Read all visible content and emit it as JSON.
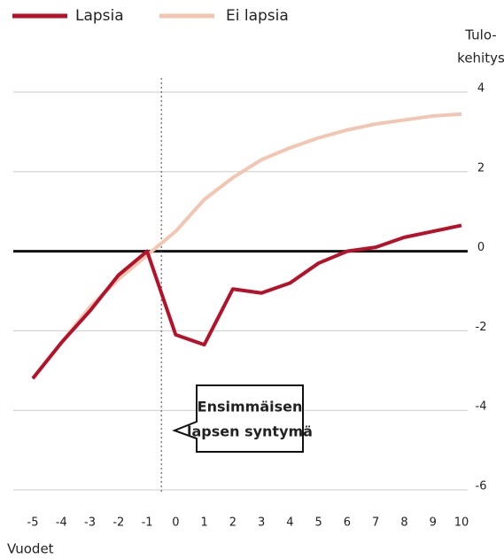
{
  "chart_data": {
    "type": "line",
    "y_label": [
      "Tulo-",
      "kehitys"
    ],
    "x_label": "Vuodet",
    "annotation": {
      "lines": [
        "Ensimmäisen",
        "lapsen syntymä"
      ],
      "x": -0.5
    },
    "x": [
      -5,
      -4,
      -3,
      -2,
      -1,
      0,
      1,
      2,
      3,
      4,
      5,
      6,
      7,
      8,
      9,
      10
    ],
    "series": [
      {
        "name": "Lapsia",
        "color": "#b5122a",
        "values": [
          -3.2,
          -2.3,
          -1.5,
          -0.6,
          0,
          -2.1,
          -2.35,
          -0.95,
          -1.05,
          -0.8,
          -0.3,
          0,
          0.1,
          0.35,
          0.5,
          0.65
        ]
      },
      {
        "name": "Ei lapsia",
        "color": "#f2c6b0",
        "values": [
          -3.2,
          -2.3,
          -1.4,
          -0.7,
          -0.1,
          0.5,
          1.3,
          1.85,
          2.3,
          2.6,
          2.85,
          3.05,
          3.2,
          3.3,
          3.4,
          3.45
        ]
      }
    ],
    "xlim": [
      -5,
      10
    ],
    "xticks": [
      -5,
      -4,
      -3,
      -2,
      -1,
      0,
      1,
      2,
      3,
      4,
      5,
      6,
      7,
      8,
      9,
      10
    ],
    "ylim": [
      -6,
      4
    ],
    "yticks": [
      -6,
      -4,
      -2,
      0,
      2,
      4
    ],
    "grid": true
  }
}
